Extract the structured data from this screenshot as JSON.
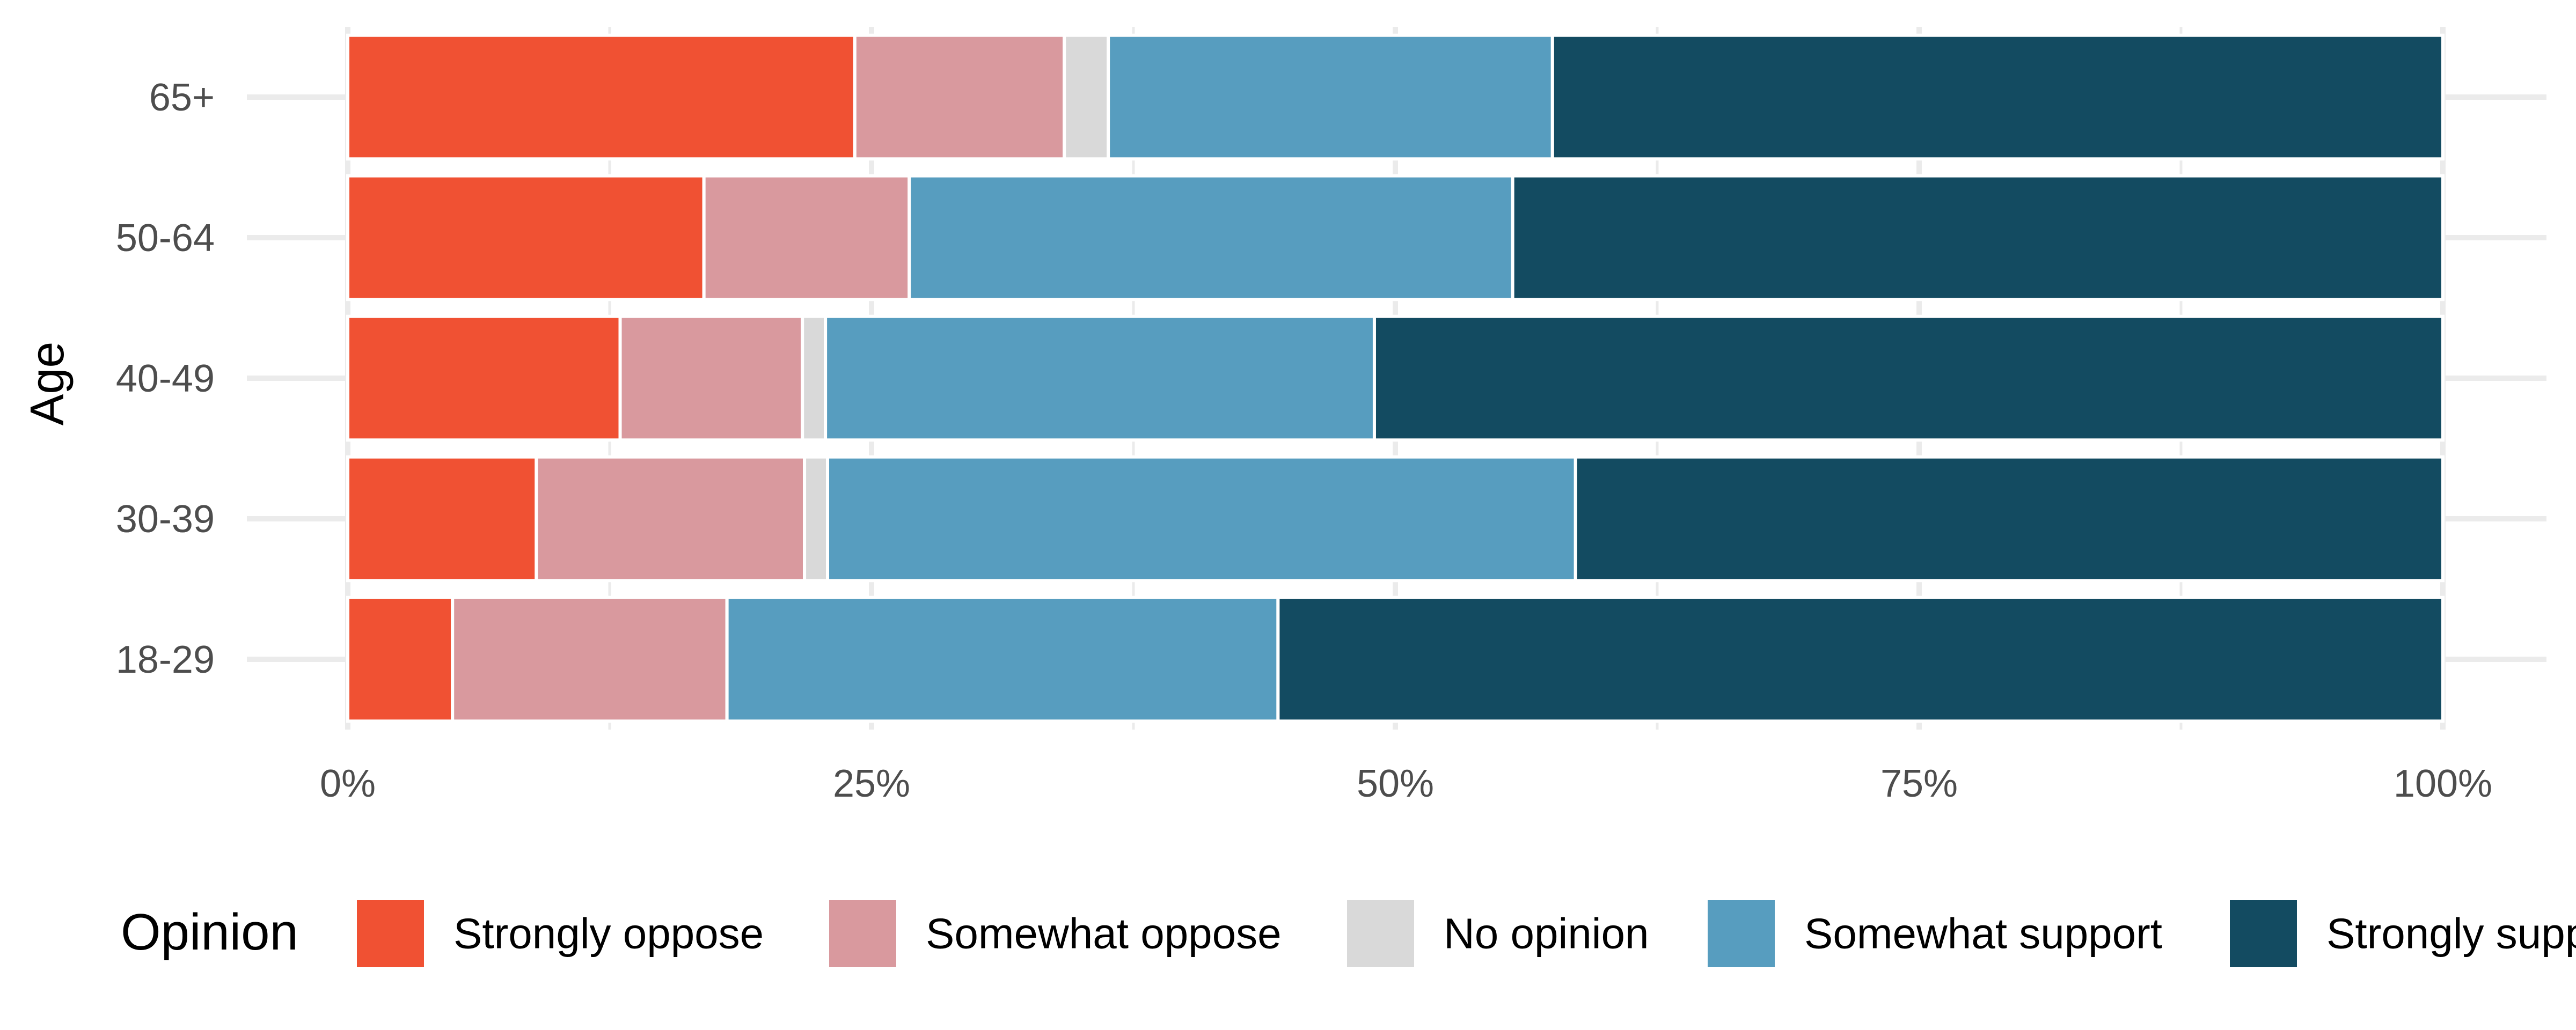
{
  "chart_data": {
    "type": "bar",
    "orientation": "horizontal",
    "stacked": "percent",
    "title": "",
    "xlabel": "",
    "ylabel": "Age",
    "xlim": [
      0,
      100
    ],
    "x_ticks": [
      "0%",
      "25%",
      "50%",
      "75%",
      "100%"
    ],
    "grid": true,
    "categories": [
      "18-29",
      "30-39",
      "40-49",
      "50-64",
      "65+"
    ],
    "series": [
      {
        "name": "Strongly oppose",
        "color": "#F05133",
        "values": [
          5.0,
          9.0,
          13.0,
          17.0,
          24.2
        ]
      },
      {
        "name": "Somewhat oppose",
        "color": "#D9999E",
        "values": [
          13.1,
          12.8,
          8.7,
          9.8,
          10.0
        ]
      },
      {
        "name": "No opinion",
        "color": "#D9D9D9",
        "values": [
          0.0,
          1.1,
          1.1,
          0.0,
          2.1
        ]
      },
      {
        "name": "Somewhat support",
        "color": "#579DBF",
        "values": [
          26.3,
          35.7,
          26.2,
          28.8,
          21.2
        ]
      },
      {
        "name": "Strongly support",
        "color": "#134B61",
        "values": [
          55.6,
          41.4,
          51.0,
          44.4,
          42.5
        ]
      }
    ],
    "legend": {
      "title": "Opinion",
      "position": "bottom",
      "entries": [
        "Strongly oppose",
        "Somewhat oppose",
        "No opinion",
        "Somewhat support",
        "Strongly support"
      ]
    }
  }
}
